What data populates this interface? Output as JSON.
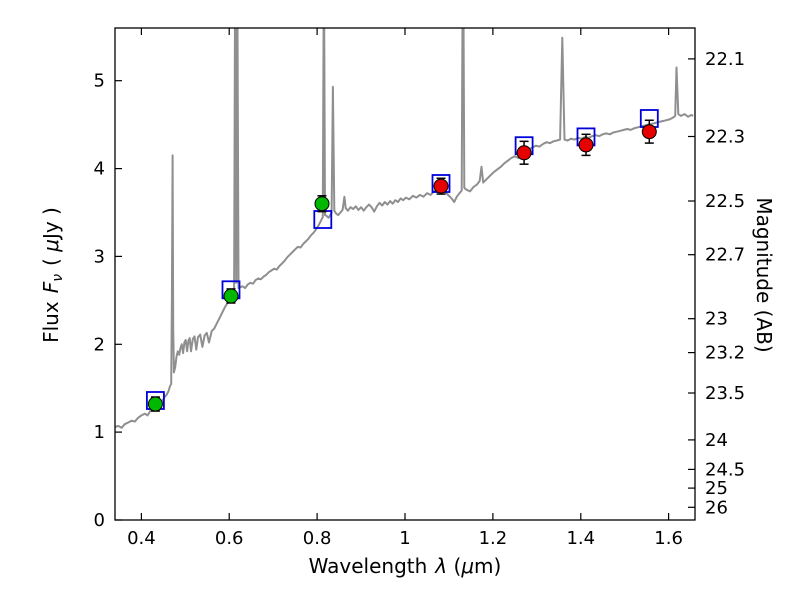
{
  "figure": {
    "xlabel": {
      "word": "Wavelength",
      "lambda": "λ",
      "open": "(",
      "mu": "μ",
      "rest": "m)"
    },
    "ylabel_left": {
      "word": "Flux",
      "f": "F",
      "nu": "ν",
      "open": "(",
      "mu": "μ",
      "rest": "Jy )"
    },
    "ylabel_right": "Magnitude (AB)"
  },
  "chart_data": {
    "type": "line+scatter",
    "description": "Galaxy spectral energy distribution: gray model spectrum, observed photometry (filled circles with error bars), model photometry (open blue squares)",
    "xlabel": "Wavelength λ (μm)",
    "ylabel": "Flux Fν ( μJy )",
    "ylabel_right": "Magnitude (AB)",
    "xlim": [
      0.34,
      1.66
    ],
    "ylim_flux": [
      0,
      5.6
    ],
    "grid": false,
    "legend": null,
    "mag_zeropoint": 23.9,
    "xticks": [
      0.4,
      0.6,
      0.8,
      1.0,
      1.2,
      1.4,
      1.6
    ],
    "xtick_labels": [
      "0.4",
      "0.6",
      "0.8",
      "1",
      "1.2",
      "1.4",
      "1.6"
    ],
    "yticks": [
      0,
      1,
      2,
      3,
      4,
      5
    ],
    "ytick_labels": [
      "0",
      "1",
      "2",
      "3",
      "4",
      "5"
    ],
    "mag_ticks": [
      22.1,
      22.3,
      22.5,
      22.7,
      23.0,
      23.2,
      23.5,
      24.0,
      24.5,
      25.0,
      26.0
    ],
    "mag_tick_labels": [
      "22.1",
      "22.3",
      "22.5",
      "22.7",
      "23",
      "23.2",
      "23.5",
      "24",
      "24.5",
      "25",
      "26"
    ],
    "colors": {
      "spectrum": "#8f8f8f",
      "observed_optical": "#00b800",
      "observed_nir": "#e60000",
      "model_phot": "#0000dd",
      "errorbar": "#000000",
      "marker_edge": "#000000",
      "frame": "#000000"
    },
    "spectrum": [
      [
        0.34,
        1.06
      ],
      [
        0.348,
        1.07
      ],
      [
        0.355,
        1.05
      ],
      [
        0.362,
        1.09
      ],
      [
        0.37,
        1.11
      ],
      [
        0.378,
        1.13
      ],
      [
        0.385,
        1.12
      ],
      [
        0.392,
        1.16
      ],
      [
        0.4,
        1.19
      ],
      [
        0.408,
        1.21
      ],
      [
        0.414,
        1.19
      ],
      [
        0.42,
        1.24
      ],
      [
        0.426,
        1.27
      ],
      [
        0.432,
        1.31
      ],
      [
        0.438,
        1.33
      ],
      [
        0.443,
        1.31
      ],
      [
        0.448,
        1.36
      ],
      [
        0.453,
        1.4
      ],
      [
        0.458,
        1.43
      ],
      [
        0.462,
        1.47
      ],
      [
        0.465,
        1.52
      ],
      [
        0.468,
        1.55
      ],
      [
        0.4695,
        2.5
      ],
      [
        0.471,
        4.15
      ],
      [
        0.4725,
        2.2
      ],
      [
        0.474,
        1.68
      ],
      [
        0.477,
        1.74
      ],
      [
        0.48,
        1.86
      ],
      [
        0.483,
        1.92
      ],
      [
        0.486,
        1.88
      ],
      [
        0.489,
        1.96
      ],
      [
        0.492,
        2.0
      ],
      [
        0.495,
        1.9
      ],
      [
        0.498,
        2.02
      ],
      [
        0.501,
        2.05
      ],
      [
        0.504,
        1.92
      ],
      [
        0.507,
        2.04
      ],
      [
        0.51,
        2.07
      ],
      [
        0.513,
        1.92
      ],
      [
        0.517,
        2.06
      ],
      [
        0.521,
        2.09
      ],
      [
        0.525,
        1.94
      ],
      [
        0.529,
        2.08
      ],
      [
        0.534,
        2.11
      ],
      [
        0.539,
        1.97
      ],
      [
        0.544,
        2.1
      ],
      [
        0.549,
        2.13
      ],
      [
        0.554,
        2.02
      ],
      [
        0.56,
        2.15
      ],
      [
        0.566,
        2.18
      ],
      [
        0.572,
        2.24
      ],
      [
        0.578,
        2.3
      ],
      [
        0.584,
        2.36
      ],
      [
        0.59,
        2.42
      ],
      [
        0.596,
        2.47
      ],
      [
        0.602,
        2.52
      ],
      [
        0.607,
        2.55
      ],
      [
        0.611,
        2.58
      ],
      [
        0.6135,
        6.5
      ],
      [
        0.616,
        2.7
      ],
      [
        0.6185,
        6.0
      ],
      [
        0.621,
        2.64
      ],
      [
        0.625,
        2.65
      ],
      [
        0.63,
        2.66
      ],
      [
        0.636,
        2.64
      ],
      [
        0.642,
        2.68
      ],
      [
        0.648,
        2.7
      ],
      [
        0.654,
        2.69
      ],
      [
        0.66,
        2.73
      ],
      [
        0.666,
        2.75
      ],
      [
        0.672,
        2.74
      ],
      [
        0.678,
        2.77
      ],
      [
        0.684,
        2.79
      ],
      [
        0.69,
        2.82
      ],
      [
        0.696,
        2.84
      ],
      [
        0.702,
        2.86
      ],
      [
        0.708,
        2.85
      ],
      [
        0.714,
        2.89
      ],
      [
        0.72,
        2.92
      ],
      [
        0.726,
        2.95
      ],
      [
        0.732,
        2.99
      ],
      [
        0.738,
        3.02
      ],
      [
        0.744,
        3.05
      ],
      [
        0.75,
        3.08
      ],
      [
        0.756,
        3.11
      ],
      [
        0.762,
        3.1
      ],
      [
        0.768,
        3.14
      ],
      [
        0.774,
        3.17
      ],
      [
        0.78,
        3.2
      ],
      [
        0.786,
        3.24
      ],
      [
        0.792,
        3.27
      ],
      [
        0.798,
        3.31
      ],
      [
        0.804,
        3.36
      ],
      [
        0.809,
        3.41
      ],
      [
        0.813,
        3.45
      ],
      [
        0.8155,
        6.5
      ],
      [
        0.818,
        3.47
      ],
      [
        0.822,
        3.46
      ],
      [
        0.826,
        3.44
      ],
      [
        0.83,
        3.47
      ],
      [
        0.833,
        3.5
      ],
      [
        0.836,
        4.93
      ],
      [
        0.839,
        3.52
      ],
      [
        0.843,
        3.49
      ],
      [
        0.848,
        3.47
      ],
      [
        0.853,
        3.5
      ],
      [
        0.858,
        3.53
      ],
      [
        0.862,
        3.68
      ],
      [
        0.865,
        3.55
      ],
      [
        0.87,
        3.52
      ],
      [
        0.876,
        3.56
      ],
      [
        0.882,
        3.54
      ],
      [
        0.888,
        3.57
      ],
      [
        0.894,
        3.53
      ],
      [
        0.9,
        3.56
      ],
      [
        0.906,
        3.52
      ],
      [
        0.912,
        3.56
      ],
      [
        0.918,
        3.59
      ],
      [
        0.924,
        3.56
      ],
      [
        0.93,
        3.51
      ],
      [
        0.936,
        3.57
      ],
      [
        0.942,
        3.61
      ],
      [
        0.948,
        3.58
      ],
      [
        0.954,
        3.62
      ],
      [
        0.96,
        3.59
      ],
      [
        0.966,
        3.63
      ],
      [
        0.972,
        3.6
      ],
      [
        0.978,
        3.64
      ],
      [
        0.984,
        3.62
      ],
      [
        0.99,
        3.66
      ],
      [
        0.996,
        3.64
      ],
      [
        1.002,
        3.67
      ],
      [
        1.01,
        3.65
      ],
      [
        1.018,
        3.69
      ],
      [
        1.026,
        3.67
      ],
      [
        1.034,
        3.7
      ],
      [
        1.042,
        3.68
      ],
      [
        1.05,
        3.72
      ],
      [
        1.058,
        3.7
      ],
      [
        1.066,
        3.74
      ],
      [
        1.074,
        3.76
      ],
      [
        1.082,
        3.77
      ],
      [
        1.09,
        3.74
      ],
      [
        1.098,
        3.7
      ],
      [
        1.106,
        3.66
      ],
      [
        1.112,
        3.62
      ],
      [
        1.118,
        3.68
      ],
      [
        1.124,
        3.72
      ],
      [
        1.129,
        3.75
      ],
      [
        1.132,
        7.0
      ],
      [
        1.135,
        3.78
      ],
      [
        1.14,
        3.76
      ],
      [
        1.148,
        3.74
      ],
      [
        1.156,
        3.79
      ],
      [
        1.164,
        3.82
      ],
      [
        1.17,
        3.86
      ],
      [
        1.174,
        4.02
      ],
      [
        1.178,
        3.84
      ],
      [
        1.186,
        3.88
      ],
      [
        1.194,
        3.92
      ],
      [
        1.202,
        3.96
      ],
      [
        1.21,
        3.99
      ],
      [
        1.218,
        4.02
      ],
      [
        1.226,
        4.06
      ],
      [
        1.234,
        4.09
      ],
      [
        1.242,
        4.12
      ],
      [
        1.25,
        4.14
      ],
      [
        1.258,
        4.12
      ],
      [
        1.266,
        4.16
      ],
      [
        1.274,
        4.19
      ],
      [
        1.282,
        4.22
      ],
      [
        1.29,
        4.24
      ],
      [
        1.298,
        4.26
      ],
      [
        1.306,
        4.25
      ],
      [
        1.314,
        4.28
      ],
      [
        1.322,
        4.3
      ],
      [
        1.33,
        4.29
      ],
      [
        1.338,
        4.31
      ],
      [
        1.346,
        4.32
      ],
      [
        1.353,
        4.33
      ],
      [
        1.358,
        5.49
      ],
      [
        1.363,
        4.33
      ],
      [
        1.37,
        4.32
      ],
      [
        1.378,
        4.34
      ],
      [
        1.386,
        4.33
      ],
      [
        1.394,
        4.35
      ],
      [
        1.402,
        4.34
      ],
      [
        1.41,
        4.36
      ],
      [
        1.418,
        4.35
      ],
      [
        1.426,
        4.37
      ],
      [
        1.434,
        4.38
      ],
      [
        1.442,
        4.37
      ],
      [
        1.45,
        4.39
      ],
      [
        1.458,
        4.4
      ],
      [
        1.466,
        4.39
      ],
      [
        1.474,
        4.41
      ],
      [
        1.482,
        4.42
      ],
      [
        1.49,
        4.43
      ],
      [
        1.498,
        4.44
      ],
      [
        1.506,
        4.45
      ],
      [
        1.514,
        4.44
      ],
      [
        1.522,
        4.46
      ],
      [
        1.53,
        4.47
      ],
      [
        1.538,
        4.48
      ],
      [
        1.546,
        4.49
      ],
      [
        1.554,
        4.5
      ],
      [
        1.562,
        4.51
      ],
      [
        1.57,
        4.52
      ],
      [
        1.578,
        4.53
      ],
      [
        1.586,
        4.54
      ],
      [
        1.594,
        4.55
      ],
      [
        1.602,
        4.56
      ],
      [
        1.61,
        4.58
      ],
      [
        1.615,
        4.6
      ],
      [
        1.618,
        5.15
      ],
      [
        1.622,
        4.62
      ],
      [
        1.628,
        4.6
      ],
      [
        1.636,
        4.62
      ],
      [
        1.644,
        4.59
      ],
      [
        1.652,
        4.61
      ],
      [
        1.656,
        4.6
      ]
    ],
    "observed": [
      {
        "name": "observed-optical",
        "marker": "circle",
        "color_key": "observed_optical",
        "x": [
          0.432,
          0.604,
          0.811
        ],
        "y": [
          1.32,
          2.55,
          3.6
        ],
        "yerr": [
          0.08,
          0.08,
          0.09
        ]
      },
      {
        "name": "observed-near-infrared",
        "marker": "circle",
        "color_key": "observed_nir",
        "x": [
          1.082,
          1.271,
          1.412,
          1.556
        ],
        "y": [
          3.8,
          4.18,
          4.27,
          4.42
        ],
        "yerr": [
          0.09,
          0.13,
          0.12,
          0.13
        ]
      }
    ],
    "model_photometry": {
      "name": "model-photometry",
      "marker": "open-square",
      "color_key": "model_phot",
      "x": [
        0.432,
        0.604,
        0.813,
        1.082,
        1.271,
        1.412,
        1.556
      ],
      "y": [
        1.36,
        2.62,
        3.42,
        3.83,
        4.26,
        4.36,
        4.57
      ]
    }
  }
}
